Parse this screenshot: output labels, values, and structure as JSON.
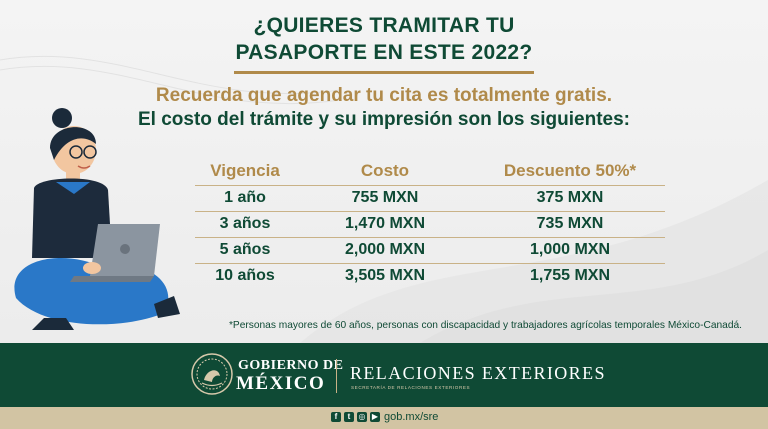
{
  "headline": {
    "line1": "¿QUIERES TRAMITAR TU",
    "line2": "PASAPORTE EN ESTE 2022?"
  },
  "intro": {
    "line1": "Recuerda que agendar tu cita es totalmente gratis.",
    "line2": "El costo del trámite y su impresión son los siguientes:"
  },
  "table": {
    "headers": [
      "Vigencia",
      "Costo",
      "Descuento 50%*"
    ],
    "rows": [
      [
        "1 año",
        "755 MXN",
        "375 MXN"
      ],
      [
        "3 años",
        "1,470 MXN",
        "735 MXN"
      ],
      [
        "5 años",
        "2,000 MXN",
        "1,000 MXN"
      ],
      [
        "10 años",
        "3,505 MXN",
        "1,755 MXN"
      ]
    ]
  },
  "footnote": "*Personas mayores de 60 años, personas con discapacidad y trabajadores agrícolas temporales México-Canadá.",
  "footer": {
    "gob_line1": "GOBIERNO DE",
    "gob_line2": "MÉXICO",
    "sre": "RELACIONES EXTERIORES",
    "sre_sub": "SECRETARÍA DE RELACIONES EXTERIORES",
    "url": "gob.mx/sre",
    "social_icons": [
      "facebook-icon",
      "twitter-icon",
      "instagram-icon",
      "youtube-icon"
    ]
  },
  "colors": {
    "green": "#0f4a35",
    "gold": "#b08a4a",
    "beige": "#d2c4a3",
    "blue": "#2a78c8"
  }
}
